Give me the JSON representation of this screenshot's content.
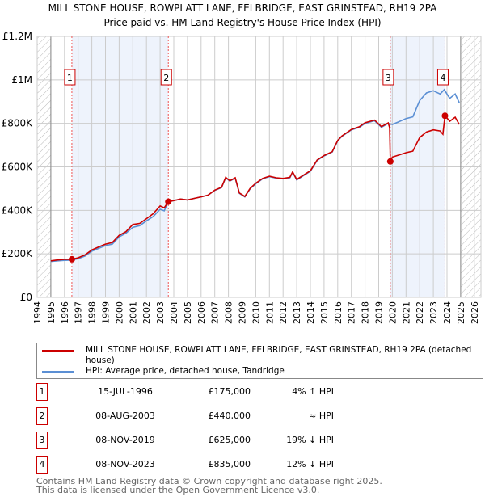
{
  "chart_data": {
    "type": "line",
    "title": "MILL STONE HOUSE, ROWPLATT LANE, FELBRIDGE, EAST GRINSTEAD, RH19 2PA",
    "subtitle": "Price paid vs. HM Land Registry's House Price Index (HPI)",
    "xlim": [
      1994,
      2026
    ],
    "ylim": [
      0,
      1200000
    ],
    "x_ticks": [
      "1994",
      "1995",
      "1996",
      "1997",
      "1998",
      "1999",
      "2000",
      "2001",
      "2002",
      "2003",
      "2004",
      "2005",
      "2006",
      "2007",
      "2008",
      "2009",
      "2010",
      "2011",
      "2012",
      "2013",
      "2014",
      "2015",
      "2016",
      "2017",
      "2018",
      "2019",
      "2020",
      "2021",
      "2022",
      "2023",
      "2024",
      "2025",
      "2026"
    ],
    "y_ticks": [
      {
        "v": 0,
        "label": "£0"
      },
      {
        "v": 200000,
        "label": "£200K"
      },
      {
        "v": 400000,
        "label": "£400K"
      },
      {
        "v": 600000,
        "label": "£600K"
      },
      {
        "v": 800000,
        "label": "£800K"
      },
      {
        "v": 1000000,
        "label": "£1M"
      },
      {
        "v": 1200000,
        "label": "£1.2M"
      }
    ],
    "grid": true,
    "series": [
      {
        "name": "HPI: Average price, detached house, Tandridge",
        "color": "#5b8fd4",
        "x": [
          1995,
          1995.5,
          1996,
          1996.5,
          1997,
          1997.5,
          1998,
          1998.5,
          1999,
          1999.5,
          2000,
          2000.5,
          2001,
          2001.5,
          2002,
          2002.5,
          2003,
          2003.3,
          2003.6,
          2004,
          2004.5,
          2005,
          2005.5,
          2006,
          2006.5,
          2007,
          2007.5,
          2007.8,
          2008.1,
          2008.5,
          2008.8,
          2009.2,
          2009.6,
          2010,
          2010.5,
          2011,
          2011.5,
          2012,
          2012.5,
          2012.7,
          2013,
          2013.5,
          2014,
          2014.5,
          2015,
          2015.6,
          2016,
          2016.3,
          2017,
          2017.6,
          2018,
          2018.7,
          2019.2,
          2019.7,
          2020,
          2020.5,
          2021,
          2021.5,
          2022,
          2022.5,
          2023,
          2023.5,
          2023.8,
          2024.2,
          2024.6,
          2024.9
        ],
        "y": [
          165000,
          168000,
          170000,
          171000,
          178000,
          190000,
          212000,
          225000,
          238000,
          245000,
          278000,
          295000,
          322000,
          330000,
          352000,
          372000,
          405000,
          398000,
          440000,
          445000,
          452000,
          448000,
          455000,
          462000,
          470000,
          492000,
          505000,
          550000,
          535000,
          548000,
          478000,
          462000,
          500000,
          522000,
          545000,
          555000,
          548000,
          545000,
          550000,
          575000,
          540000,
          560000,
          580000,
          630000,
          650000,
          668000,
          720000,
          740000,
          770000,
          782000,
          800000,
          812000,
          782000,
          800000,
          795000,
          808000,
          822000,
          830000,
          905000,
          940000,
          950000,
          935000,
          955000,
          915000,
          935000,
          895000
        ]
      },
      {
        "name": "MILL STONE HOUSE, ROWPLATT LANE, FELBRIDGE, EAST GRINSTEAD, RH19 2PA (detached house)",
        "color": "#cc0000",
        "x": [
          1995,
          1995.5,
          1996,
          1996.54,
          1997,
          1997.5,
          1998,
          1998.5,
          1999,
          1999.5,
          2000,
          2000.5,
          2001,
          2001.5,
          2002,
          2002.5,
          2003,
          2003.3,
          2003.6,
          2004,
          2004.5,
          2005,
          2005.5,
          2006,
          2006.5,
          2007,
          2007.5,
          2007.8,
          2008.1,
          2008.5,
          2008.8,
          2009.2,
          2009.6,
          2010,
          2010.5,
          2011,
          2011.5,
          2012,
          2012.5,
          2012.7,
          2013,
          2013.5,
          2014,
          2014.5,
          2015,
          2015.6,
          2016,
          2016.3,
          2017,
          2017.6,
          2018,
          2018.7,
          2019.2,
          2019.7,
          2019.8,
          2019.85,
          2020,
          2020.5,
          2021,
          2021.5,
          2022,
          2022.5,
          2023,
          2023.5,
          2023.7,
          2023.85,
          2024.2,
          2024.6,
          2024.9
        ],
        "y": [
          168000,
          172000,
          175000,
          175000,
          182000,
          195000,
          218000,
          232000,
          245000,
          252000,
          285000,
          302000,
          335000,
          340000,
          362000,
          385000,
          420000,
          412000,
          440000,
          445000,
          452000,
          448000,
          455000,
          462000,
          470000,
          493000,
          506000,
          552000,
          536000,
          550000,
          480000,
          464000,
          502000,
          525000,
          547000,
          557000,
          550000,
          547000,
          552000,
          577000,
          542000,
          562000,
          582000,
          632000,
          652000,
          670000,
          722000,
          742000,
          772000,
          785000,
          803000,
          815000,
          785000,
          802000,
          780000,
          625000,
          645000,
          655000,
          665000,
          672000,
          735000,
          760000,
          770000,
          765000,
          750000,
          835000,
          810000,
          828000,
          795000
        ]
      }
    ],
    "sales": [
      {
        "n": "1",
        "x": 1996.54,
        "y": 175000,
        "date": "15-JUL-1996",
        "price": "£175,000",
        "hpi": "4% ↑ HPI"
      },
      {
        "n": "2",
        "x": 2003.6,
        "y": 440000,
        "date": "08-AUG-2003",
        "price": "£440,000",
        "hpi": "≈ HPI"
      },
      {
        "n": "3",
        "x": 2019.85,
        "y": 625000,
        "date": "08-NOV-2019",
        "price": "£625,000",
        "hpi": "19% ↓ HPI"
      },
      {
        "n": "4",
        "x": 2023.85,
        "y": 835000,
        "date": "08-NOV-2023",
        "price": "£835,000",
        "hpi": "12% ↓ HPI"
      }
    ],
    "shaded_ranges": [
      [
        1996.54,
        2003.6
      ],
      [
        2019.85,
        2023.85
      ]
    ],
    "hatched_ranges": [
      [
        1994,
        1995
      ],
      [
        2025,
        2026.5
      ]
    ],
    "legend": [
      "MILL STONE HOUSE, ROWPLATT LANE, FELBRIDGE, EAST GRINSTEAD, RH19 2PA (detached house)",
      "HPI: Average price, detached house, Tandridge"
    ],
    "legend_placement": "below"
  },
  "footer": [
    "Contains HM Land Registry data © Crown copyright and database right 2025.",
    "This data is licensed under the Open Government Licence v3.0."
  ]
}
